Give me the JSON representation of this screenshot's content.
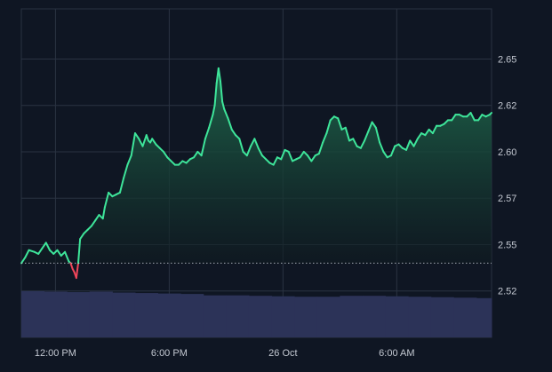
{
  "colors": {
    "background": "#0f1623",
    "grid": "#2a3342",
    "line_up": "#3ee59a",
    "line_down": "#f0455a",
    "area_top": "#1f6a4d",
    "area_bottom": "#0f1a20",
    "volume": "#2c3358",
    "baseline": "#c9ced6",
    "tick_text": "#c3c8d1"
  },
  "chart_data": {
    "type": "area",
    "title": "",
    "xlabel": "",
    "ylabel": "",
    "y_ticks": [
      "2.65",
      "2.62",
      "2.60",
      "2.57",
      "2.55",
      "2.52"
    ],
    "y_tick_values": [
      2.65,
      2.625,
      2.6,
      2.575,
      2.55,
      2.525
    ],
    "x_ticks": [
      "12:00 PM",
      "6:00 PM",
      "26 Oct",
      "6:00 AM"
    ],
    "x_tick_values": [
      12,
      18,
      24,
      30
    ],
    "xlim": [
      10.2,
      35.0
    ],
    "ylim": [
      2.5,
      2.677
    ],
    "baseline_value": 2.54,
    "grid": true,
    "series": [
      {
        "x": [
          10.2,
          10.4,
          10.6,
          10.9,
          11.1,
          11.3,
          11.5,
          11.7,
          11.9,
          12.1,
          12.3,
          12.5,
          12.7,
          12.8,
          12.9,
          13.0,
          13.1,
          13.2,
          13.3,
          13.5,
          13.7,
          13.9,
          14.1,
          14.3,
          14.5,
          14.6,
          14.8,
          15.0,
          15.2,
          15.4,
          15.6,
          15.8,
          16.0,
          16.2,
          16.4,
          16.6,
          16.8,
          16.9,
          17.0,
          17.1,
          17.3,
          17.5,
          17.7,
          17.9,
          18.1,
          18.3,
          18.5,
          18.7,
          18.9,
          19.1,
          19.3,
          19.5,
          19.7,
          19.9,
          20.1,
          20.3,
          20.4,
          20.5,
          20.6,
          20.7,
          20.8,
          20.9,
          21.1,
          21.3,
          21.5,
          21.7,
          21.9,
          22.1,
          22.3,
          22.5,
          22.7,
          22.9,
          23.1,
          23.3,
          23.5,
          23.7,
          23.9,
          24.1,
          24.3,
          24.5,
          24.7,
          24.9,
          25.1,
          25.3,
          25.5,
          25.7,
          25.9,
          26.1,
          26.3,
          26.5,
          26.7,
          26.9,
          27.1,
          27.3,
          27.5,
          27.7,
          27.9,
          28.1,
          28.3,
          28.5,
          28.7,
          28.9,
          29.1,
          29.3,
          29.5,
          29.7,
          29.9,
          30.1,
          30.3,
          30.5,
          30.7,
          30.9,
          31.1,
          31.3,
          31.5,
          31.7,
          31.9,
          32.1,
          32.3,
          32.5,
          32.7,
          32.9,
          33.1,
          33.3,
          33.5,
          33.7,
          33.9,
          34.1,
          34.3,
          34.5,
          34.7,
          34.9,
          35.0
        ],
        "values": [
          2.54,
          2.543,
          2.547,
          2.546,
          2.545,
          2.548,
          2.551,
          2.547,
          2.545,
          2.547,
          2.544,
          2.546,
          2.541,
          2.54,
          2.537,
          2.535,
          2.532,
          2.54,
          2.553,
          2.556,
          2.558,
          2.56,
          2.563,
          2.566,
          2.564,
          2.57,
          2.578,
          2.576,
          2.577,
          2.578,
          2.586,
          2.593,
          2.598,
          2.61,
          2.607,
          2.603,
          2.609,
          2.606,
          2.605,
          2.607,
          2.604,
          2.602,
          2.6,
          2.597,
          2.595,
          2.593,
          2.593,
          2.595,
          2.594,
          2.596,
          2.597,
          2.6,
          2.598,
          2.607,
          2.613,
          2.62,
          2.625,
          2.637,
          2.645,
          2.638,
          2.627,
          2.623,
          2.618,
          2.612,
          2.609,
          2.607,
          2.6,
          2.598,
          2.603,
          2.607,
          2.602,
          2.598,
          2.596,
          2.594,
          2.593,
          2.597,
          2.596,
          2.601,
          2.6,
          2.595,
          2.596,
          2.597,
          2.6,
          2.598,
          2.595,
          2.598,
          2.599,
          2.605,
          2.61,
          2.617,
          2.619,
          2.618,
          2.612,
          2.613,
          2.606,
          2.607,
          2.603,
          2.602,
          2.606,
          2.611,
          2.616,
          2.613,
          2.605,
          2.6,
          2.597,
          2.598,
          2.603,
          2.604,
          2.602,
          2.601,
          2.606,
          2.603,
          2.607,
          2.61,
          2.609,
          2.612,
          2.61,
          2.614,
          2.614,
          2.615,
          2.617,
          2.617,
          2.62,
          2.62,
          2.619,
          2.619,
          2.621,
          2.617,
          2.617,
          2.62,
          2.619,
          2.62,
          2.621
        ]
      }
    ],
    "volume": {
      "x": [
        10.2,
        11.4,
        12.6,
        13.8,
        15.0,
        16.2,
        17.4,
        18.6,
        19.8,
        21.0,
        22.2,
        23.4,
        24.6,
        25.8,
        27.0,
        28.2,
        29.4,
        30.6,
        31.8,
        33.0,
        34.2,
        35.0
      ],
      "values": [
        1.0,
        0.99,
        0.98,
        0.99,
        0.97,
        0.96,
        0.95,
        0.94,
        0.91,
        0.91,
        0.9,
        0.89,
        0.88,
        0.88,
        0.9,
        0.9,
        0.89,
        0.88,
        0.87,
        0.86,
        0.85,
        0.85
      ]
    }
  }
}
